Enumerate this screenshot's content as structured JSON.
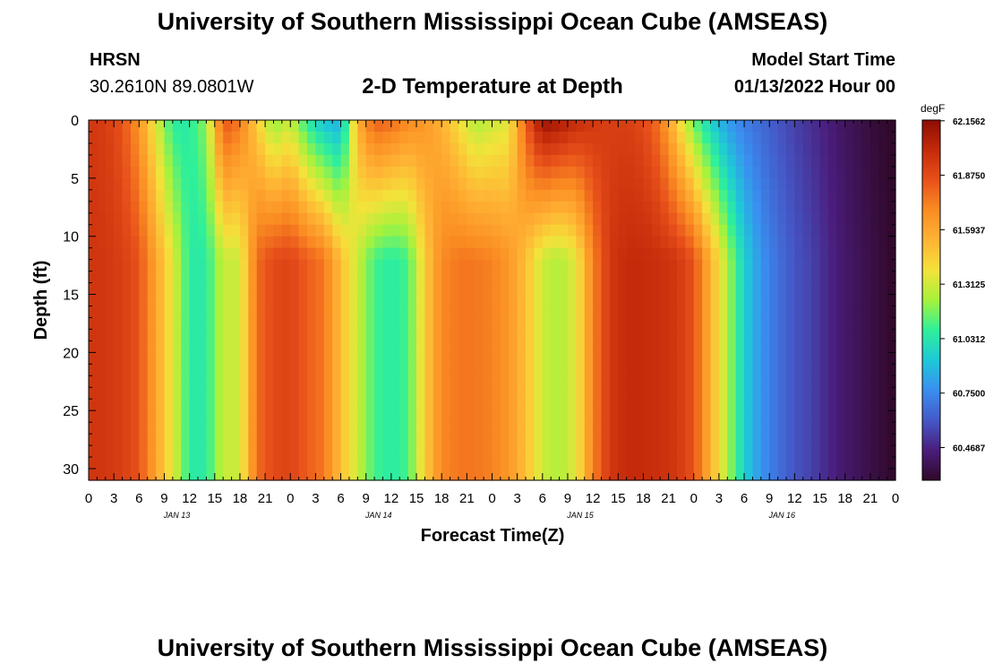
{
  "header": {
    "title": "University of Southern Mississippi Ocean Cube (AMSEAS)",
    "station": "HRSN",
    "coordinates": "30.2610N  89.0801W",
    "subtitle": "2-D Temperature at Depth",
    "model_start_label": "Model Start Time",
    "model_start_value": "01/13/2022 Hour 00"
  },
  "footer": {
    "title": "University of Southern Mississippi Ocean Cube (AMSEAS)"
  },
  "chart_data": {
    "type": "heatmap",
    "title": "2-D Temperature at Depth",
    "xlabel": "Forecast Time(Z)",
    "ylabel": "Depth (ft)",
    "x_tick_labels": [
      "0",
      "3",
      "6",
      "9",
      "12",
      "15",
      "18",
      "21",
      "0",
      "3",
      "6",
      "9",
      "12",
      "15",
      "18",
      "21",
      "0",
      "3",
      "6",
      "9",
      "12",
      "15",
      "18",
      "21",
      "0",
      "3",
      "6",
      "9",
      "12",
      "15",
      "18",
      "21",
      "0"
    ],
    "x_day_labels": [
      "JAN 13",
      "JAN 14",
      "JAN 15",
      "JAN 16"
    ],
    "xlim_hours": [
      0,
      96
    ],
    "y_ticks": [
      0,
      5,
      10,
      15,
      20,
      25,
      30
    ],
    "ylim_ft": [
      0,
      31
    ],
    "y_inverted": true,
    "colorbar": {
      "units": "degF",
      "tick_labels": [
        "62.1562",
        "61.8750",
        "61.5937",
        "61.3125",
        "61.0312",
        "60.7500",
        "60.4687"
      ],
      "colors": [
        "#300828",
        "#4a1d7c",
        "#4459c8",
        "#3a8ef0",
        "#1ec8d8",
        "#2ff09a",
        "#a6f23c",
        "#f4e23a",
        "#ffb334",
        "#fa8c22",
        "#e8511b",
        "#c42a0a",
        "#8e0c05"
      ]
    },
    "time_profile_hours": [
      0,
      2,
      4,
      6,
      8,
      10,
      12,
      14,
      16,
      18,
      20,
      22,
      24,
      26,
      28,
      30,
      32,
      34,
      36,
      38,
      40,
      42,
      44,
      46,
      48,
      50,
      52,
      54,
      56,
      58,
      60,
      62,
      64,
      66,
      68,
      70,
      72,
      74,
      76,
      78,
      80,
      82,
      84,
      86,
      88,
      90,
      92,
      94,
      96
    ],
    "surface_temp_degF": [
      61.95,
      61.93,
      61.85,
      61.65,
      61.35,
      61.05,
      61.05,
      61.2,
      61.85,
      61.75,
      61.45,
      61.2,
      61.3,
      61.05,
      60.9,
      60.85,
      61.55,
      61.82,
      61.78,
      61.7,
      61.65,
      61.55,
      61.4,
      61.25,
      61.3,
      61.35,
      61.82,
      62.12,
      62.08,
      62.0,
      61.95,
      61.92,
      61.92,
      61.88,
      61.75,
      61.45,
      61.15,
      60.95,
      60.8,
      60.72,
      60.66,
      60.6,
      60.55,
      60.5,
      60.45,
      60.4,
      60.36,
      60.32,
      60.3
    ],
    "bottom_temp_degF": [
      61.96,
      61.95,
      61.92,
      61.85,
      61.6,
      61.35,
      61.05,
      61.05,
      61.3,
      61.3,
      61.78,
      61.88,
      61.9,
      61.82,
      61.75,
      61.5,
      61.3,
      61.1,
      61.05,
      61.1,
      61.45,
      61.7,
      61.75,
      61.75,
      61.72,
      61.65,
      61.5,
      61.3,
      61.25,
      61.35,
      61.72,
      61.95,
      62.0,
      62.0,
      61.98,
      61.95,
      61.85,
      61.55,
      61.25,
      60.95,
      60.78,
      60.68,
      60.6,
      60.55,
      60.48,
      60.42,
      60.38,
      60.34,
      60.3
    ]
  }
}
